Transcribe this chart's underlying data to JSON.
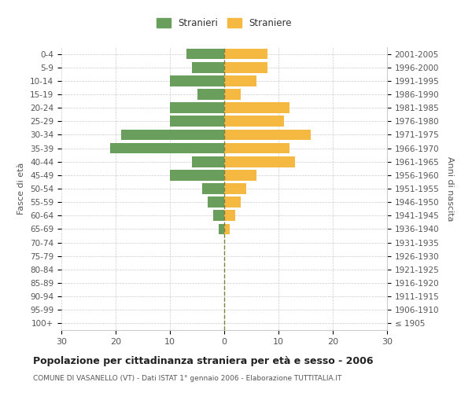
{
  "age_groups": [
    "0-4",
    "5-9",
    "10-14",
    "15-19",
    "20-24",
    "25-29",
    "30-34",
    "35-39",
    "40-44",
    "45-49",
    "50-54",
    "55-59",
    "60-64",
    "65-69",
    "70-74",
    "75-79",
    "80-84",
    "85-89",
    "90-94",
    "95-99",
    "100+"
  ],
  "birth_years": [
    "2001-2005",
    "1996-2000",
    "1991-1995",
    "1986-1990",
    "1981-1985",
    "1976-1980",
    "1971-1975",
    "1966-1970",
    "1961-1965",
    "1956-1960",
    "1951-1955",
    "1946-1950",
    "1941-1945",
    "1936-1940",
    "1931-1935",
    "1926-1930",
    "1921-1925",
    "1916-1920",
    "1911-1915",
    "1906-1910",
    "≤ 1905"
  ],
  "males": [
    7,
    6,
    10,
    5,
    10,
    10,
    19,
    21,
    6,
    10,
    4,
    3,
    2,
    1,
    0,
    0,
    0,
    0,
    0,
    0,
    0
  ],
  "females": [
    8,
    8,
    6,
    3,
    12,
    11,
    16,
    12,
    13,
    6,
    4,
    3,
    2,
    1,
    0,
    0,
    0,
    0,
    0,
    0,
    0
  ],
  "male_color": "#6a9e5c",
  "female_color": "#f5b942",
  "background_color": "#ffffff",
  "grid_color": "#cccccc",
  "title": "Popolazione per cittadinanza straniera per età e sesso - 2006",
  "subtitle": "COMUNE DI VASANELLO (VT) - Dati ISTAT 1° gennaio 2006 - Elaborazione TUTTITALIA.IT",
  "ylabel_left": "Fasce di età",
  "ylabel_right": "Anni di nascita",
  "legend_male": "Stranieri",
  "legend_female": "Straniere",
  "xlim": 30,
  "dashed_line_color": "#808040"
}
